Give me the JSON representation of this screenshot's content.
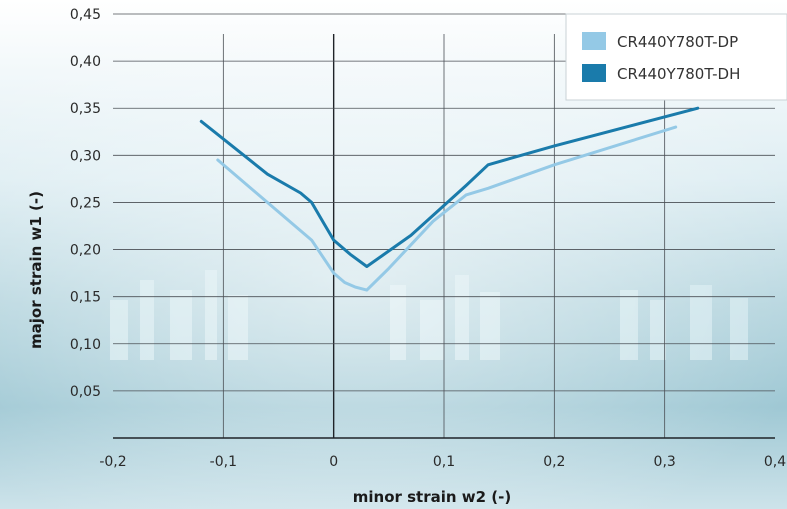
{
  "chart_data": {
    "type": "line",
    "title": "",
    "xlabel": "minor strain w2 (-)",
    "ylabel": "major strain w1 (-)",
    "xlim": [
      -0.2,
      0.4
    ],
    "ylim": [
      0,
      0.45
    ],
    "x_ticks": [
      "-0,2",
      "-0,1",
      "0",
      "0,1",
      "0,2",
      "0,3",
      "0,4"
    ],
    "y_ticks": [
      "0,05",
      "0,10",
      "0,15",
      "0,20",
      "0,25",
      "0,30",
      "0,35",
      "0,40",
      "0,45"
    ],
    "grid": true,
    "legend_position": "top-right",
    "series": [
      {
        "name": "CR440Y780T-DP",
        "color": "#94c9e6",
        "x": [
          -0.105,
          -0.05,
          -0.02,
          0.0,
          0.01,
          0.02,
          0.03,
          0.05,
          0.09,
          0.12,
          0.14,
          0.2,
          0.31
        ],
        "y": [
          0.295,
          0.24,
          0.21,
          0.175,
          0.165,
          0.16,
          0.157,
          0.18,
          0.23,
          0.258,
          0.265,
          0.29,
          0.33
        ]
      },
      {
        "name": "CR440Y780T-DH",
        "color": "#1a7bab",
        "x": [
          -0.12,
          -0.06,
          -0.03,
          -0.02,
          -0.01,
          0.0,
          0.015,
          0.03,
          0.07,
          0.12,
          0.14,
          0.2,
          0.33
        ],
        "y": [
          0.336,
          0.28,
          0.26,
          0.25,
          0.23,
          0.21,
          0.195,
          0.182,
          0.215,
          0.268,
          0.29,
          0.31,
          0.35
        ]
      }
    ]
  },
  "palette": {
    "grid": "#4a4f55",
    "zero_axis": "#1f2328",
    "legend_bg": "#ffffff"
  }
}
